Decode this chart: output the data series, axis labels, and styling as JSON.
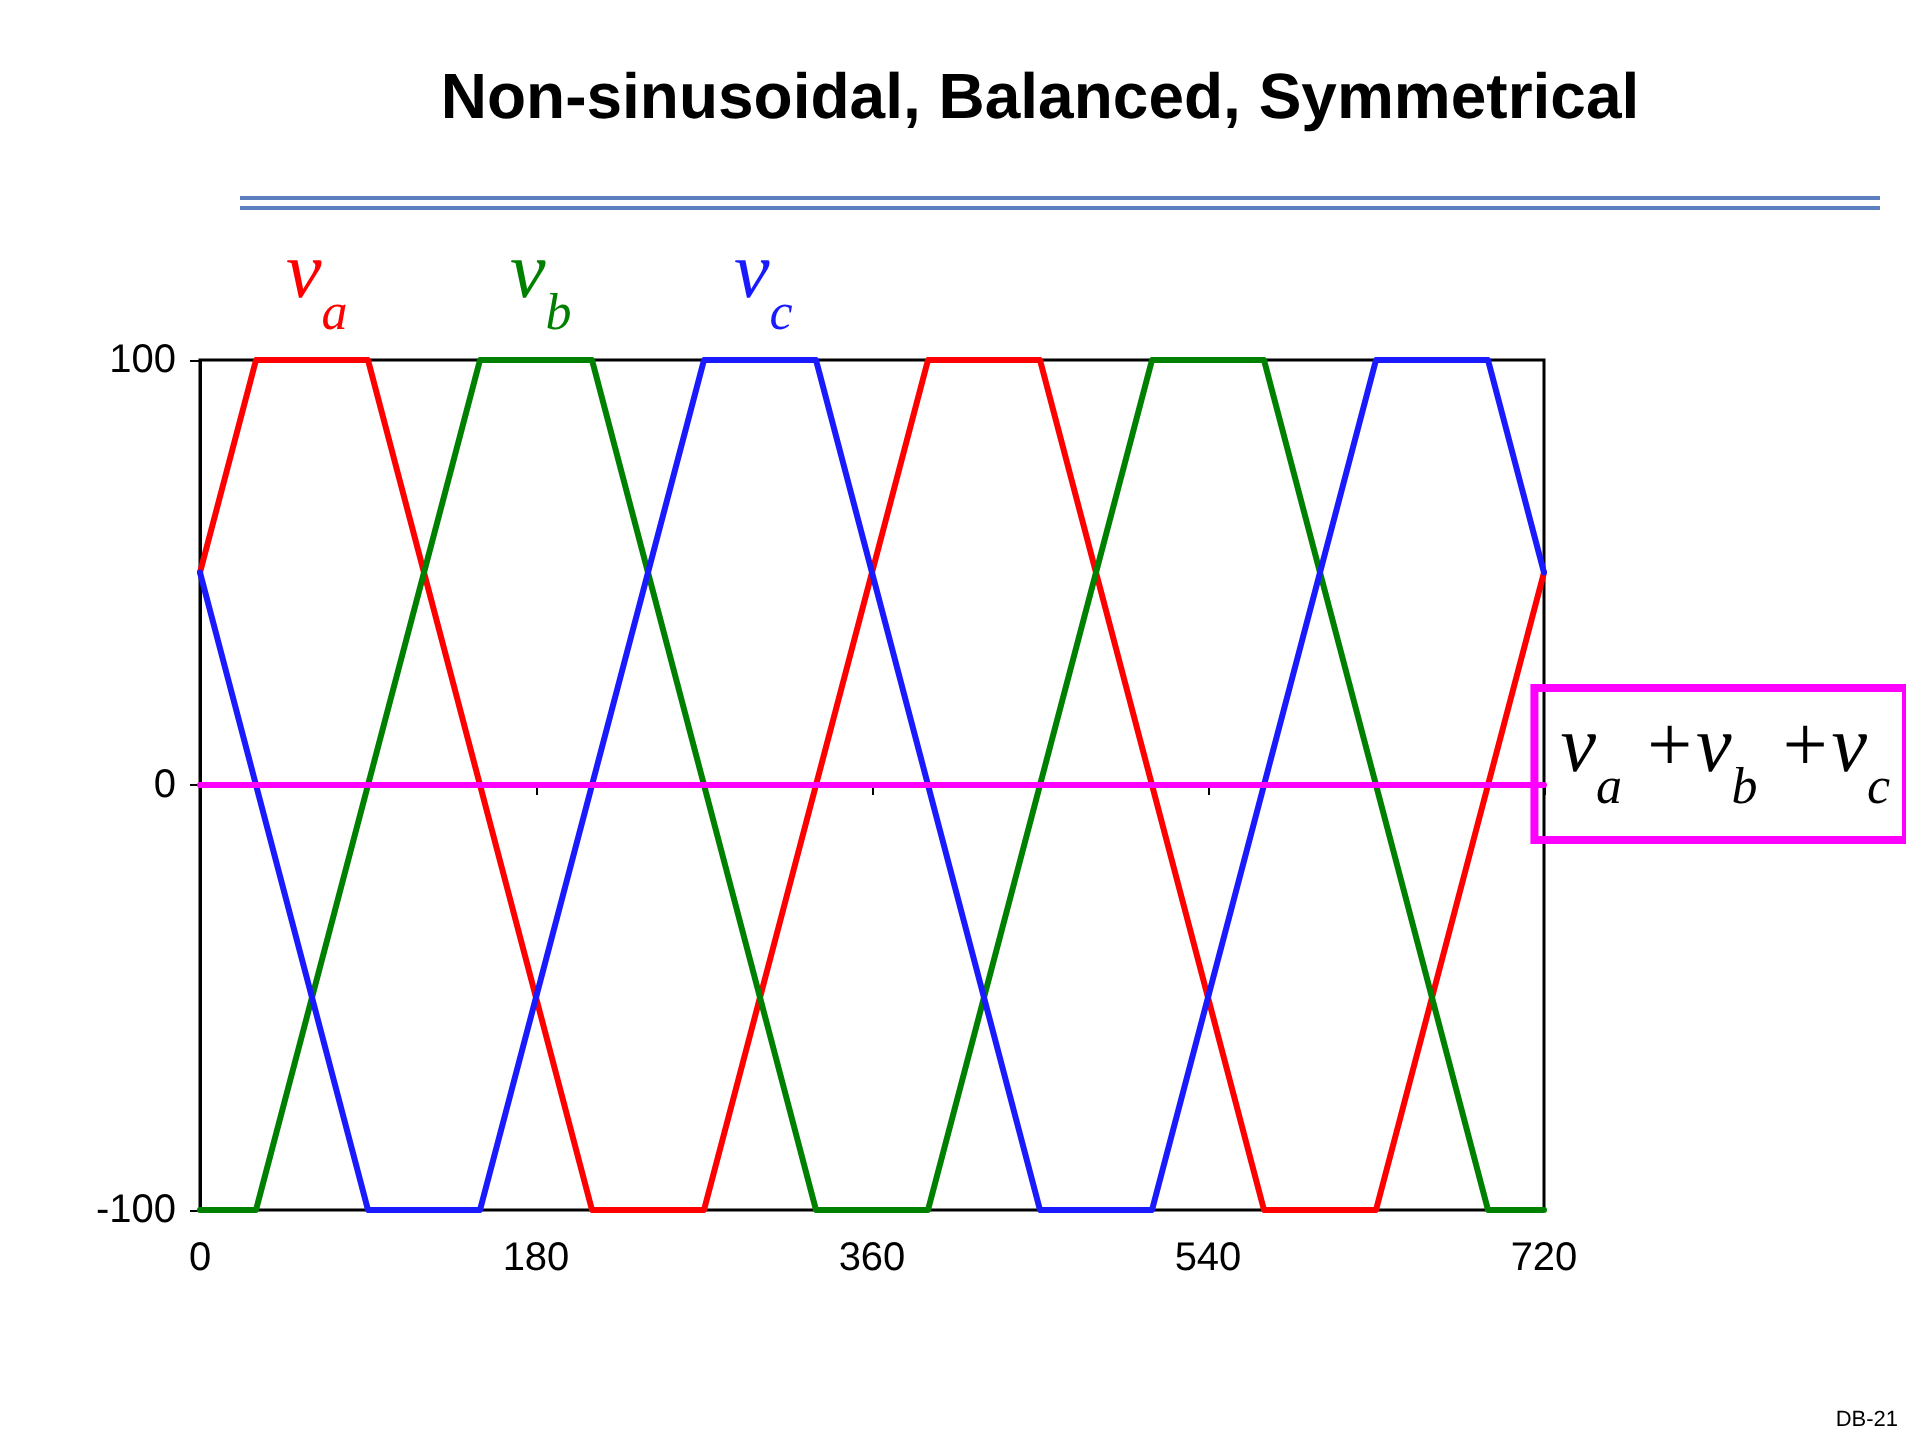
{
  "chart_data": {
    "type": "line",
    "title": "Non-sinusoidal, Balanced, Symmetrical",
    "xlim": [
      0,
      720
    ],
    "xticks": [
      0,
      180,
      360,
      540,
      720
    ],
    "ylim": [
      -100,
      100
    ],
    "yticks": [
      -100,
      0,
      100
    ],
    "grid": false,
    "legend": "top",
    "marker": "none",
    "line_style": "solid",
    "annotations": [
      "DB-21"
    ],
    "series": [
      {
        "name": "v$_{a}$",
        "color": "#ff0000",
        "x": [
          0,
          30,
          90,
          210,
          270,
          390,
          450,
          570,
          630,
          720
        ],
        "values": [
          50,
          100,
          100,
          -100,
          -100,
          100,
          100,
          -100,
          -100,
          50
        ]
      },
      {
        "name": "v$_{b}$",
        "color": "#008000",
        "x": [
          0,
          30,
          150,
          210,
          330,
          390,
          510,
          570,
          690,
          720
        ],
        "values": [
          -100,
          -100,
          100,
          100,
          -100,
          -100,
          100,
          100,
          -100,
          -100
        ]
      },
      {
        "name": "v$_{c}$",
        "color": "#1a1aff",
        "x": [
          0,
          90,
          150,
          270,
          330,
          450,
          510,
          630,
          690,
          720
        ],
        "values": [
          50,
          -100,
          -100,
          100,
          100,
          -100,
          -100,
          100,
          100,
          50
        ]
      },
      {
        "name": "v$_{a}$ +v$_{b}$ +v$_{c}$",
        "color": "#ff00ff",
        "x": [
          0,
          720
        ],
        "values": [
          0,
          0
        ]
      }
    ]
  }
}
